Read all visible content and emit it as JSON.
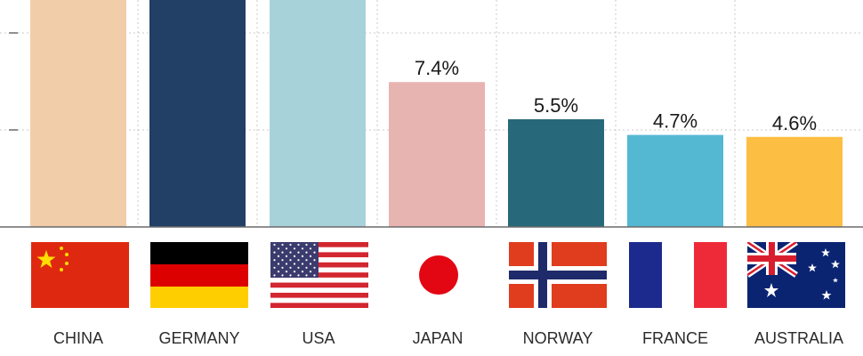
{
  "chart_data": {
    "type": "bar",
    "categories": [
      "CHINA",
      "GERMANY",
      "USA",
      "JAPAN",
      "NORWAY",
      "FRANCE",
      "AUSTRALIA"
    ],
    "values": [
      null,
      null,
      null,
      7.4,
      5.5,
      4.7,
      4.6
    ],
    "data_labels": [
      "",
      "",
      "",
      "7.4%",
      "5.5%",
      "4.7%",
      "4.6%"
    ],
    "flags": [
      "china-flag",
      "germany-flag",
      "usa-flag",
      "japan-flag",
      "norway-flag",
      "france-flag",
      "australia-flag"
    ],
    "colors": [
      "#F2CDAA",
      "#223F66",
      "#A8D2DA",
      "#E8B4B1",
      "#27697A",
      "#55B8D3",
      "#FDBE44"
    ],
    "grid": true,
    "title": "",
    "xlabel": "",
    "ylabel": ""
  }
}
